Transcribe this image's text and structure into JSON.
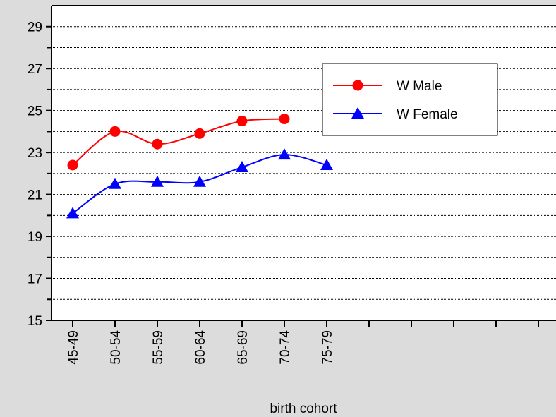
{
  "chart_data": {
    "type": "line",
    "x_label": "birth cohort",
    "categories": [
      "45-49",
      "50-54",
      "55-59",
      "60-64",
      "65-69",
      "70-74",
      "75-79",
      null,
      null,
      null,
      null,
      null
    ],
    "series": [
      {
        "name": "W Male",
        "color": "#ff0000",
        "marker": "circle",
        "values": [
          22.4,
          24.0,
          23.4,
          23.9,
          24.5,
          24.6,
          null,
          null,
          null,
          null,
          null,
          null
        ]
      },
      {
        "name": "W Female",
        "color": "#0000ff",
        "marker": "triangle",
        "values": [
          20.1,
          21.5,
          21.6,
          21.6,
          22.3,
          22.9,
          22.4,
          null,
          null,
          null,
          null,
          null
        ]
      }
    ],
    "ylim": [
      15,
      30
    ],
    "yticks": [
      15,
      17,
      19,
      21,
      23,
      25,
      27,
      29
    ],
    "minor_yticks": [
      16,
      18,
      20,
      22,
      24,
      26,
      28
    ],
    "grid": true,
    "legend": "upper right"
  }
}
